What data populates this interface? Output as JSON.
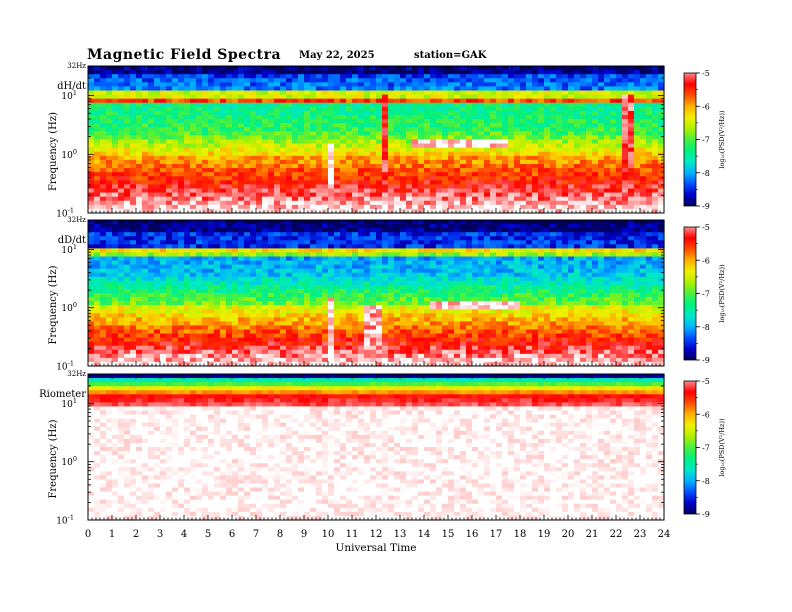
{
  "header": {
    "title": "Magnetic  Field  Spectra",
    "date": "May 22, 2025",
    "station": "station=GAK"
  },
  "colors": {
    "colormap": [
      "#000060",
      "#0000c8",
      "#0050ff",
      "#00b4ff",
      "#00e8c8",
      "#00f080",
      "#48f040",
      "#b0f000",
      "#f0f000",
      "#ffb000",
      "#ff5000",
      "#ff0000",
      "#ff8a8a",
      "#ffffff"
    ],
    "frame": "#000000"
  },
  "chart_data": [
    {
      "type": "heatmap",
      "panel_label": "dH/dt",
      "ylabel": "Frequency  (Hz)",
      "y_top_label": "32Hz",
      "y_ticks": [
        {
          "base": "10",
          "exp": "1",
          "value": 10
        },
        {
          "base": "10",
          "exp": "0",
          "value": 1
        },
        {
          "base": "10",
          "exp": "-1",
          "value": 0.1
        }
      ],
      "ylim": [
        0.1,
        32
      ],
      "y_scale": "log",
      "xlim": [
        0,
        24
      ],
      "colorbar": {
        "label": "log₁₀(PSD(V²/Hz))",
        "ticks": [
          "-5",
          "-6",
          "-7",
          "-8",
          "-9"
        ],
        "range": [
          -9,
          -5
        ]
      }
    },
    {
      "type": "heatmap",
      "panel_label": "dD/dt",
      "ylabel": "Frequency  (Hz)",
      "y_top_label": "32Hz",
      "y_ticks": [
        {
          "base": "10",
          "exp": "1",
          "value": 10
        },
        {
          "base": "10",
          "exp": "0",
          "value": 1
        },
        {
          "base": "10",
          "exp": "-1",
          "value": 0.1
        }
      ],
      "ylim": [
        0.1,
        32
      ],
      "y_scale": "log",
      "xlim": [
        0,
        24
      ],
      "colorbar": {
        "label": "log₁₀(PSD(V²/Hz))",
        "ticks": [
          "-5",
          "-6",
          "-7",
          "-8",
          "-9"
        ],
        "range": [
          -9,
          -5
        ]
      }
    },
    {
      "type": "heatmap",
      "panel_label": "Riometer",
      "ylabel": "Frequency  (Hz)",
      "y_top_label": "32Hz",
      "y_ticks": [
        {
          "base": "10",
          "exp": "1",
          "value": 10
        },
        {
          "base": "10",
          "exp": "0",
          "value": 1
        },
        {
          "base": "10",
          "exp": "-1",
          "value": 0.1
        }
      ],
      "ylim": [
        0.1,
        32
      ],
      "y_scale": "log",
      "xlim": [
        0,
        24
      ],
      "x_ticks": [
        "0",
        "1",
        "2",
        "3",
        "4",
        "5",
        "6",
        "7",
        "8",
        "9",
        "10",
        "11",
        "12",
        "13",
        "14",
        "15",
        "16",
        "17",
        "18",
        "19",
        "20",
        "21",
        "22",
        "23",
        "24"
      ],
      "xlabel": "Universal  Time",
      "colorbar": {
        "label": "log₁₀(PSD(V²/Hz))",
        "ticks": [
          "-5",
          "-6",
          "-7",
          "-8",
          "-9"
        ],
        "range": [
          -9,
          -5
        ]
      }
    }
  ]
}
